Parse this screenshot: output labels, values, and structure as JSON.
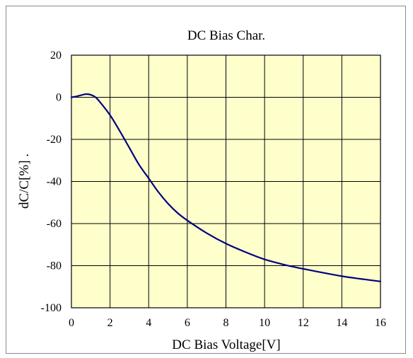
{
  "chart_data": {
    "type": "line",
    "title": "DC Bias Char.",
    "xlabel": "DC Bias Voltage[V]",
    "ylabel": "dC/C[%] .",
    "xlim": [
      0,
      16
    ],
    "ylim": [
      -100,
      20
    ],
    "x_ticks": [
      "0",
      "2",
      "4",
      "6",
      "8",
      "10",
      "12",
      "14",
      "16"
    ],
    "y_ticks": [
      "20",
      "0",
      "-20",
      "-40",
      "-60",
      "-80",
      "-100"
    ],
    "grid": true,
    "legend": "none",
    "colors": {
      "plot_background": "#FFFFCC",
      "line": "#000080"
    },
    "series": [
      {
        "x": [
          0,
          0.25,
          0.5,
          0.75,
          1.0,
          1.25,
          1.5,
          2.0,
          2.5,
          3.0,
          3.5,
          4.0,
          4.5,
          5.0,
          5.5,
          6.0,
          7.0,
          8.0,
          9.0,
          10.0,
          11.0,
          12.0,
          13.0,
          14.0,
          15.0,
          16.0
        ],
        "y": [
          0,
          0.4,
          1.0,
          1.5,
          1.2,
          0,
          -2.5,
          -8.5,
          -16,
          -24,
          -32,
          -38.5,
          -45,
          -50.5,
          -55,
          -58.5,
          -64.5,
          -69.5,
          -73.5,
          -77,
          -79.5,
          -81.5,
          -83.3,
          -85,
          -86.3,
          -87.5
        ]
      }
    ]
  }
}
